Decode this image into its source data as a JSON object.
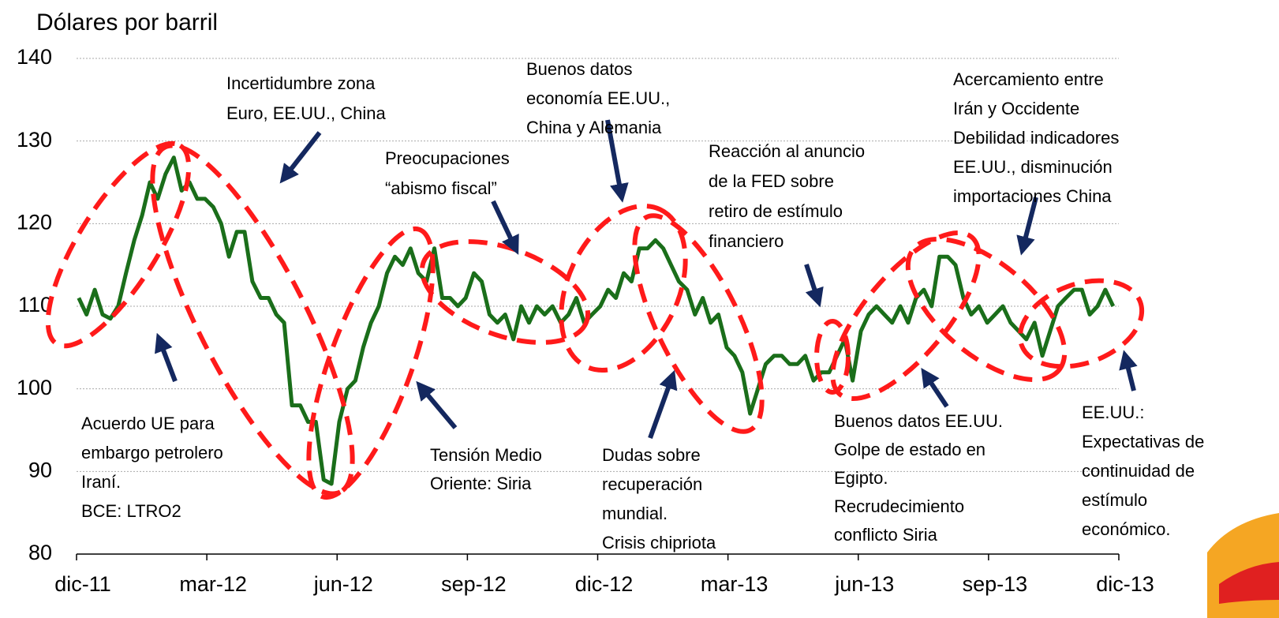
{
  "chart_data": {
    "type": "line",
    "title": "Dólares por barril",
    "xlim": [
      0,
      24
    ],
    "xticks": [
      {
        "value": 0,
        "label": "dic-11"
      },
      {
        "value": 3,
        "label": "mar-12"
      },
      {
        "value": 6,
        "label": "jun-12"
      },
      {
        "value": 9,
        "label": "sep-12"
      },
      {
        "value": 12,
        "label": "dic-12"
      },
      {
        "value": 15,
        "label": "mar-13"
      },
      {
        "value": 18,
        "label": "jun-13"
      },
      {
        "value": 21,
        "label": "sep-13"
      },
      {
        "value": 24,
        "label": "dic-13"
      }
    ],
    "ylim": [
      80,
      140
    ],
    "yticks": [
      80,
      90,
      100,
      110,
      120,
      130,
      140
    ],
    "grid": true,
    "x": [
      0.05,
      0.23,
      0.42,
      0.6,
      0.78,
      0.96,
      1.14,
      1.33,
      1.51,
      1.69,
      1.87,
      2.05,
      2.24,
      2.42,
      2.6,
      2.78,
      2.96,
      3.15,
      3.33,
      3.51,
      3.69,
      3.87,
      4.05,
      4.24,
      4.42,
      4.6,
      4.78,
      4.96,
      5.15,
      5.33,
      5.51,
      5.69,
      5.87,
      6.05,
      6.24,
      6.42,
      6.6,
      6.78,
      6.96,
      7.15,
      7.33,
      7.51,
      7.69,
      7.87,
      8.06,
      8.24,
      8.42,
      8.6,
      8.78,
      8.96,
      9.15,
      9.33,
      9.51,
      9.69,
      9.87,
      10.06,
      10.24,
      10.42,
      10.6,
      10.78,
      10.96,
      11.15,
      11.33,
      11.51,
      11.69,
      11.87,
      12.06,
      12.24,
      12.42,
      12.6,
      12.78,
      12.96,
      13.15,
      13.33,
      13.51,
      13.69,
      13.87,
      14.06,
      14.24,
      14.42,
      14.6,
      14.78,
      14.97,
      15.15,
      15.33,
      15.51,
      15.69,
      15.87,
      16.06,
      16.24,
      16.42,
      16.6,
      16.78,
      16.97,
      17.15,
      17.33,
      17.51,
      17.69,
      17.87,
      18.06,
      18.24,
      18.42,
      18.6,
      18.78,
      18.97,
      19.15,
      19.33,
      19.51,
      19.69,
      19.87,
      20.06,
      20.24,
      20.42,
      20.6,
      20.78,
      20.97,
      21.15,
      21.33,
      21.51,
      21.69,
      21.87,
      22.06,
      22.24,
      22.42,
      22.6,
      22.78,
      22.97,
      23.15,
      23.33,
      23.51,
      23.69,
      23.87
    ],
    "series": [
      {
        "color": "#1a6e1a",
        "values": [
          111,
          109,
          112,
          109,
          108.5,
          110,
          114,
          118,
          121,
          125,
          123,
          126,
          128,
          124,
          125,
          123,
          123,
          122,
          120,
          116,
          119,
          119,
          113,
          111,
          111,
          109,
          108,
          98,
          98,
          96,
          96,
          89,
          88.5,
          96,
          100,
          101,
          105,
          108,
          110,
          114,
          116,
          115,
          117,
          114,
          113,
          117,
          111,
          111,
          110,
          111,
          114,
          113,
          109,
          108,
          109,
          106,
          110,
          108,
          110,
          109,
          110,
          108,
          109,
          111,
          108,
          109,
          110,
          112,
          111,
          114,
          113,
          117,
          117,
          118,
          117,
          115,
          113,
          112,
          109,
          111,
          108,
          109,
          105,
          104,
          102,
          97,
          100,
          103,
          104,
          104,
          103,
          103,
          104,
          101,
          102,
          102,
          104,
          106,
          101,
          107,
          109,
          110,
          109,
          108,
          110,
          108,
          111,
          112,
          110,
          116,
          116,
          115,
          111,
          109,
          110,
          108,
          109,
          110,
          108,
          107,
          106,
          108,
          104,
          107,
          110,
          111,
          112,
          112,
          109,
          110,
          112,
          110
        ]
      }
    ],
    "annotations": [
      {
        "lines": [
          "Incertidumbre zona",
          "Euro, EE.UU., China"
        ]
      },
      {
        "lines": [
          "Buenos datos",
          "economía EE.UU.,",
          "China y Alemania"
        ]
      },
      {
        "lines": [
          "Preocupaciones",
          "“abismo fiscal”"
        ]
      },
      {
        "lines": [
          "Reacción al anuncio",
          "de la FED sobre",
          "retiro de estímulo",
          "financiero"
        ]
      },
      {
        "lines": [
          "Acercamiento entre",
          "Irán y Occidente",
          "Debilidad indicadores",
          "EE.UU., disminución",
          "importaciones China"
        ]
      },
      {
        "lines": [
          "Acuerdo UE para",
          "embargo petrolero",
          "Iraní.",
          "BCE: LTRO2"
        ]
      },
      {
        "lines": [
          "Tensión Medio",
          "Oriente: Siria"
        ]
      },
      {
        "lines": [
          "Dudas sobre",
          "recuperación",
          "mundial.",
          "Crisis chipriota"
        ]
      },
      {
        "lines": [
          "Buenos datos EE.UU.",
          "Golpe de estado en",
          "Egipto.",
          "Recrudecimiento",
          "conflicto Siria"
        ]
      },
      {
        "lines": [
          "EE.UU.:",
          "Expectativas de",
          "continuidad de",
          "estímulo",
          "económico."
        ]
      }
    ]
  }
}
